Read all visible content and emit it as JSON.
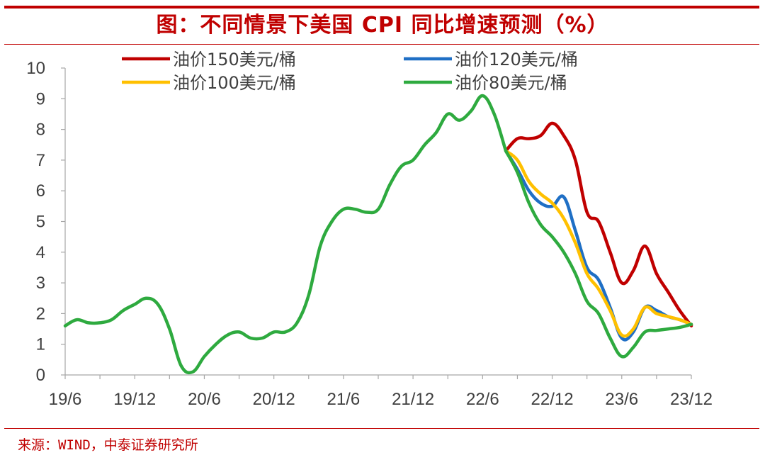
{
  "title": "图：不同情景下美国 CPI 同比增速预测（%）",
  "source": "来源：WIND，中泰证券研究所",
  "chart_data": {
    "type": "line",
    "title": "图：不同情景下美国 CPI 同比增速预测（%）",
    "xlabel": "",
    "ylabel": "",
    "ylim": [
      0,
      10
    ],
    "y_ticks": [
      "0",
      "1",
      "2",
      "3",
      "4",
      "5",
      "6",
      "7",
      "8",
      "9",
      "10"
    ],
    "x_tick_labels": [
      "19/6",
      "19/12",
      "20/6",
      "20/12",
      "21/6",
      "21/12",
      "22/6",
      "22/12",
      "23/6",
      "23/12"
    ],
    "x_range": [
      "2019-06",
      "2023-12"
    ],
    "grid": false,
    "legend_position": "top",
    "history": {
      "name": "",
      "x": [
        "2019-06",
        "2019-07",
        "2019-08",
        "2019-09",
        "2019-10",
        "2019-11",
        "2019-12",
        "2020-01",
        "2020-02",
        "2020-03",
        "2020-04",
        "2020-05",
        "2020-06",
        "2020-07",
        "2020-08",
        "2020-09",
        "2020-10",
        "2020-11",
        "2020-12",
        "2021-01",
        "2021-02",
        "2021-03",
        "2021-04",
        "2021-05",
        "2021-06",
        "2021-07",
        "2021-08",
        "2021-09",
        "2021-10",
        "2021-11",
        "2021-12",
        "2022-01",
        "2022-02",
        "2022-03",
        "2022-04",
        "2022-05",
        "2022-06",
        "2022-07",
        "2022-08"
      ],
      "values": [
        1.6,
        1.8,
        1.7,
        1.7,
        1.8,
        2.1,
        2.3,
        2.5,
        2.3,
        1.5,
        0.3,
        0.1,
        0.6,
        1.0,
        1.3,
        1.4,
        1.2,
        1.2,
        1.4,
        1.4,
        1.7,
        2.6,
        4.2,
        5.0,
        5.4,
        5.4,
        5.3,
        5.4,
        6.2,
        6.8,
        7.0,
        7.5,
        7.9,
        8.5,
        8.3,
        8.6,
        9.1,
        8.5,
        7.3
      ],
      "color": "#2eaa3f"
    },
    "series": [
      {
        "name": "油价150美元/桶",
        "color": "#c00000",
        "x": [
          "2022-08",
          "2022-09",
          "2022-10",
          "2022-11",
          "2022-12",
          "2023-01",
          "2023-02",
          "2023-03",
          "2023-04",
          "2023-05",
          "2023-06",
          "2023-07",
          "2023-08",
          "2023-09",
          "2023-10",
          "2023-11",
          "2023-12"
        ],
        "values": [
          7.3,
          7.7,
          7.7,
          7.8,
          8.2,
          7.8,
          7.0,
          5.3,
          5.0,
          4.0,
          3.0,
          3.4,
          4.2,
          3.3,
          2.7,
          2.1,
          1.6
        ]
      },
      {
        "name": "油价120美元/桶",
        "color": "#1f6fc5",
        "x": [
          "2022-08",
          "2022-09",
          "2022-10",
          "2022-11",
          "2022-12",
          "2023-01",
          "2023-02",
          "2023-03",
          "2023-04",
          "2023-05",
          "2023-06",
          "2023-07",
          "2023-08",
          "2023-09",
          "2023-10",
          "2023-11",
          "2023-12"
        ],
        "values": [
          7.3,
          6.7,
          6.0,
          5.6,
          5.5,
          5.8,
          4.7,
          3.5,
          3.1,
          2.2,
          1.2,
          1.4,
          2.2,
          2.1,
          1.9,
          1.8,
          1.65
        ]
      },
      {
        "name": "油价100美元/桶",
        "color": "#ffc000",
        "x": [
          "2022-08",
          "2022-09",
          "2022-10",
          "2022-11",
          "2022-12",
          "2023-01",
          "2023-02",
          "2023-03",
          "2023-04",
          "2023-05",
          "2023-06",
          "2023-07",
          "2023-08",
          "2023-09",
          "2023-10",
          "2023-11",
          "2023-12"
        ],
        "values": [
          7.3,
          7.0,
          6.3,
          5.9,
          5.6,
          5.1,
          4.3,
          3.3,
          2.8,
          2.1,
          1.3,
          1.5,
          2.2,
          2.0,
          1.9,
          1.8,
          1.65
        ]
      },
      {
        "name": "油价80美元/桶",
        "color": "#2eaa3f",
        "x": [
          "2022-08",
          "2022-09",
          "2022-10",
          "2022-11",
          "2022-12",
          "2023-01",
          "2023-02",
          "2023-03",
          "2023-04",
          "2023-05",
          "2023-06",
          "2023-07",
          "2023-08",
          "2023-09",
          "2023-10",
          "2023-11",
          "2023-12"
        ],
        "values": [
          7.3,
          6.6,
          5.6,
          4.9,
          4.5,
          4.0,
          3.3,
          2.4,
          2.0,
          1.2,
          0.6,
          0.9,
          1.4,
          1.45,
          1.5,
          1.55,
          1.65
        ]
      }
    ]
  }
}
